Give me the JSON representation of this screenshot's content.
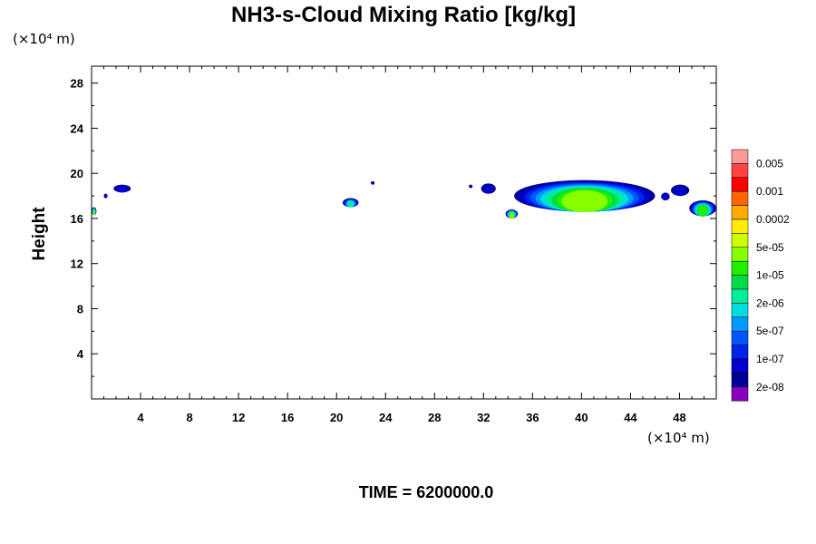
{
  "chart_data": {
    "type": "heatmap",
    "title": "NH3-s-Cloud Mixing Ratio [kg/kg]",
    "ylabel": "Height",
    "x_unit_label": "(×10⁴ m)",
    "y_unit_label": "(×10⁴ m)",
    "xlim": [
      0,
      51
    ],
    "ylim": [
      0,
      29.5
    ],
    "x_ticks": [
      4,
      8,
      12,
      16,
      20,
      24,
      28,
      32,
      36,
      40,
      44,
      48
    ],
    "y_ticks": [
      4,
      8,
      12,
      16,
      20,
      24,
      28
    ],
    "colorbar": {
      "labels": [
        "0.005",
        "0.001",
        "0.0002",
        "5e-05",
        "1e-05",
        "2e-06",
        "5e-07",
        "1e-07",
        "2e-08"
      ],
      "colors_top_to_bottom": [
        "#ff9999",
        "#ff4444",
        "#ff0000",
        "#ff6600",
        "#ffaa00",
        "#ffee00",
        "#ccff00",
        "#88ff00",
        "#22ee00",
        "#00dd44",
        "#00ee99",
        "#00dddd",
        "#0099ff",
        "#0055ff",
        "#0022ee",
        "#0000cc",
        "#000099",
        "#8800bb"
      ]
    },
    "cloud_regions": [
      {
        "x": [
          0,
          0.4
        ],
        "y": [
          16.3,
          17.0
        ],
        "level": "5e-05"
      },
      {
        "x": [
          1.0,
          1.3
        ],
        "y": [
          17.8,
          18.2
        ],
        "level": "2e-08"
      },
      {
        "x": [
          1.8,
          3.2
        ],
        "y": [
          18.3,
          19.0
        ],
        "level": "2e-08"
      },
      {
        "x": [
          20.5,
          21.8
        ],
        "y": [
          17.0,
          17.8
        ],
        "level": "2e-06"
      },
      {
        "x": [
          22.8,
          23.1
        ],
        "y": [
          19.0,
          19.3
        ],
        "level": "2e-08"
      },
      {
        "x": [
          30.8,
          31.1
        ],
        "y": [
          18.7,
          19.0
        ],
        "level": "2e-08"
      },
      {
        "x": [
          31.8,
          33.0
        ],
        "y": [
          18.2,
          19.1
        ],
        "level": "2e-08"
      },
      {
        "x": [
          33.8,
          34.8
        ],
        "y": [
          16.0,
          16.8
        ],
        "level": "5e-05"
      },
      {
        "x": [
          34.5,
          46.0
        ],
        "y": [
          16.6,
          19.4
        ],
        "level": "5e-05"
      },
      {
        "x": [
          46.5,
          47.2
        ],
        "y": [
          17.6,
          18.3
        ],
        "level": "2e-08"
      },
      {
        "x": [
          47.3,
          48.8
        ],
        "y": [
          18.0,
          19.0
        ],
        "level": "2e-08"
      },
      {
        "x": [
          48.8,
          51.0
        ],
        "y": [
          16.2,
          17.6
        ],
        "level": "1e-05"
      }
    ],
    "annotation": "TIME = 6200000.0"
  }
}
